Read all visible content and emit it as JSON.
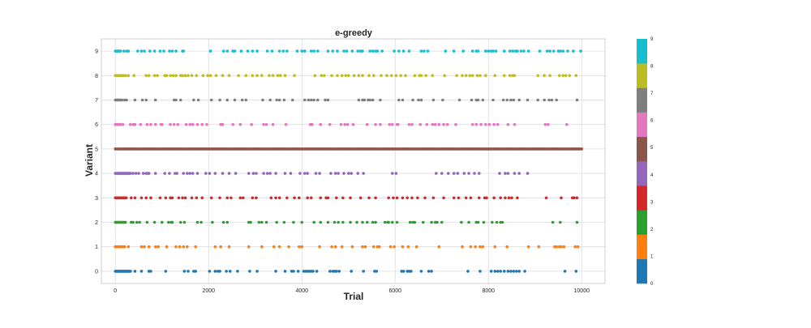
{
  "chart_data": {
    "type": "scatter",
    "title": "e-greedy",
    "xlabel": "Trial",
    "ylabel": "Variant",
    "xlim": [
      -300,
      10500
    ],
    "ylim": [
      -0.5,
      9.5
    ],
    "xticks": [
      0,
      2000,
      4000,
      6000,
      8000,
      10000
    ],
    "yticks": [
      0,
      1,
      2,
      3,
      4,
      5,
      6,
      7,
      8,
      9
    ],
    "grid": true,
    "n_trials": 10000,
    "exploit_variant": 5,
    "colorbar": {
      "ticks": [
        0,
        1,
        2,
        3,
        4,
        5,
        6,
        7,
        8,
        9
      ],
      "colors": [
        "#1f77b4",
        "#ff7f0e",
        "#2ca02c",
        "#d62728",
        "#9467bd",
        "#8c564b",
        "#e377c2",
        "#7f7f7f",
        "#bcbd22",
        "#17becf"
      ]
    },
    "series": [
      {
        "name": "0",
        "color": "#1f77b4",
        "dense_until": 330,
        "x": [
          420,
          560,
          720,
          760,
          1080,
          1480,
          1560,
          1680,
          1720,
          2020,
          2140,
          2200,
          2240,
          2380,
          2460,
          2620,
          2880,
          3040,
          3440,
          3640,
          3780,
          3820,
          3920,
          4040,
          4080,
          4120,
          4160,
          4200,
          4240,
          4320,
          4600,
          4660,
          4700,
          4740,
          4800,
          5060,
          5320,
          5560,
          5600,
          6140,
          6180,
          6260,
          6300,
          6340,
          6560,
          6720,
          6780,
          7560,
          7820,
          8060,
          8140,
          8200,
          8260,
          8340,
          8420,
          8480,
          8540,
          8600,
          8660,
          8780,
          9640,
          9880
        ]
      },
      {
        "name": "1",
        "color": "#ff7f0e",
        "dense_until": 200,
        "x": [
          280,
          560,
          620,
          720,
          860,
          920,
          1100,
          1300,
          1380,
          1460,
          1540,
          1720,
          2140,
          2260,
          2440,
          2860,
          3140,
          3400,
          3520,
          3720,
          3940,
          4000,
          4380,
          4640,
          4720,
          4860,
          5080,
          5300,
          5360,
          5540,
          5620,
          5660,
          5900,
          5980,
          6160,
          6280,
          6460,
          6940,
          7440,
          7620,
          7720,
          7820,
          7880,
          8140,
          8400,
          8860,
          9080,
          9420,
          9460,
          9520,
          9560,
          9620,
          9860,
          9920
        ]
      },
      {
        "name": "2",
        "color": "#2ca02c",
        "dense_until": 230,
        "x": [
          340,
          380,
          460,
          520,
          680,
          840,
          1000,
          1140,
          1200,
          1220,
          1400,
          1480,
          1760,
          1840,
          2080,
          2320,
          2400,
          2860,
          2900,
          3080,
          3140,
          3240,
          3460,
          3620,
          3820,
          4000,
          4260,
          4400,
          4560,
          4700,
          4780,
          4880,
          5040,
          5180,
          5300,
          5400,
          5520,
          5580,
          5780,
          5840,
          5860,
          5940,
          6040,
          6320,
          6380,
          6420,
          6600,
          6780,
          6860,
          6900,
          7000,
          7420,
          7580,
          7740,
          7780,
          7900,
          8080,
          8180,
          8260,
          8300,
          9380,
          9540,
          9900
        ]
      },
      {
        "name": "3",
        "color": "#d62728",
        "dense_until": 250,
        "x": [
          340,
          420,
          560,
          660,
          760,
          960,
          1080,
          1180,
          1220,
          1360,
          1440,
          1500,
          1640,
          1740,
          1860,
          2060,
          2240,
          2400,
          2480,
          2680,
          2740,
          2940,
          3020,
          3340,
          3440,
          3520,
          3680,
          3840,
          3940,
          4120,
          4200,
          4400,
          4520,
          4560,
          4740,
          4880,
          5040,
          5260,
          5440,
          5580,
          5860,
          5960,
          6040,
          6160,
          6260,
          6360,
          6480,
          6640,
          6820,
          7040,
          7260,
          7360,
          7520,
          7620,
          7800,
          7920,
          7960,
          8120,
          8260,
          8360,
          8440,
          8500,
          8620,
          9240,
          9560,
          9800,
          9840,
          9900
        ]
      },
      {
        "name": "4",
        "color": "#9467bd",
        "dense_until": 330,
        "x": [
          380,
          440,
          500,
          600,
          660,
          700,
          720,
          860,
          1060,
          1160,
          1280,
          1320,
          1460,
          1540,
          1600,
          1660,
          1760,
          1940,
          2020,
          2140,
          2300,
          2440,
          2580,
          2860,
          2960,
          3020,
          3180,
          3260,
          3320,
          3440,
          3640,
          3760,
          3960,
          4060,
          4120,
          4300,
          4380,
          4620,
          4720,
          4780,
          4900,
          5000,
          5060,
          5200,
          5320,
          5940,
          6020,
          6880,
          7000,
          7140,
          7260,
          7340,
          7480,
          7580,
          7700,
          7800,
          8240,
          8360,
          8420,
          8560,
          8660,
          8840
        ]
      },
      {
        "name": "6",
        "color": "#e377c2",
        "dense_until": 120,
        "x": [
          160,
          320,
          380,
          420,
          540,
          680,
          760,
          860,
          980,
          1000,
          1180,
          1260,
          1340,
          1520,
          1600,
          1660,
          1760,
          1860,
          1960,
          2260,
          2300,
          2520,
          2680,
          2920,
          3180,
          3240,
          3380,
          3660,
          4180,
          4220,
          4400,
          4600,
          4840,
          4920,
          4980,
          5100,
          5400,
          5580,
          5680,
          5880,
          5940,
          6040,
          6060,
          6300,
          6360,
          6540,
          6680,
          6800,
          6860,
          6940,
          7040,
          7120,
          7300,
          7660,
          7740,
          7840,
          7940,
          8020,
          8120,
          8200,
          8420,
          8560,
          9220,
          9280,
          9680
        ]
      },
      {
        "name": "7",
        "color": "#7f7f7f",
        "dense_until": 160,
        "x": [
          200,
          240,
          420,
          580,
          660,
          860,
          1260,
          1300,
          1400,
          1680,
          1780,
          2060,
          2240,
          2400,
          2560,
          2720,
          2800,
          3160,
          3320,
          3460,
          3520,
          3620,
          3800,
          4060,
          4140,
          4200,
          4260,
          4340,
          4500,
          4560,
          5220,
          5300,
          5340,
          5420,
          5460,
          5520,
          5680,
          6080,
          6160,
          6380,
          6500,
          6560,
          6820,
          7020,
          7380,
          7640,
          7740,
          7780,
          7880,
          8100,
          8320,
          8400,
          8480,
          8540,
          8660,
          8840,
          9060,
          9200,
          9300,
          9360,
          9460,
          9900
        ]
      },
      {
        "name": "8",
        "color": "#bcbd22",
        "dense_until": 180,
        "x": [
          220,
          280,
          400,
          660,
          720,
          840,
          900,
          1060,
          1100,
          1180,
          1240,
          1300,
          1400,
          1440,
          1500,
          1560,
          1640,
          1740,
          1880,
          1980,
          2040,
          2160,
          2300,
          2440,
          2640,
          2800,
          2940,
          3040,
          3140,
          3300,
          3380,
          3480,
          3540,
          3640,
          3840,
          4280,
          4420,
          4480,
          4640,
          4760,
          4860,
          4940,
          5000,
          5120,
          5220,
          5300,
          5440,
          5540,
          5700,
          5820,
          5920,
          6020,
          6120,
          6220,
          6420,
          6520,
          6560,
          6660,
          6800,
          7060,
          7320,
          7440,
          7520,
          7600,
          7660,
          7760,
          7820,
          7940,
          8140,
          8340,
          8460,
          8520,
          8560,
          9060,
          9200,
          9320,
          9520,
          9600,
          9660,
          9740,
          9880
        ]
      },
      {
        "name": "9",
        "color": "#17becf",
        "dense_until": 120,
        "x": [
          180,
          240,
          280,
          480,
          560,
          620,
          740,
          840,
          960,
          1040,
          1160,
          1220,
          1300,
          1440,
          1460,
          2040,
          2320,
          2400,
          2520,
          2560,
          2700,
          2840,
          2940,
          3040,
          3260,
          3360,
          3520,
          3600,
          3680,
          3900,
          4000,
          4060,
          4200,
          4260,
          4340,
          4560,
          4660,
          4760,
          4900,
          4960,
          5080,
          5200,
          5260,
          5300,
          5460,
          5520,
          5580,
          5620,
          5720,
          5980,
          6080,
          6180,
          6300,
          6560,
          6620,
          6700,
          7080,
          7260,
          7460,
          7660,
          7740,
          7780,
          7940,
          8000,
          8060,
          8100,
          8160,
          8340,
          8460,
          8520,
          8580,
          8620,
          8700,
          8760,
          8860,
          9100,
          9260,
          9320,
          9400,
          9500,
          9540,
          9600,
          9700,
          9820,
          9980
        ]
      }
    ]
  }
}
